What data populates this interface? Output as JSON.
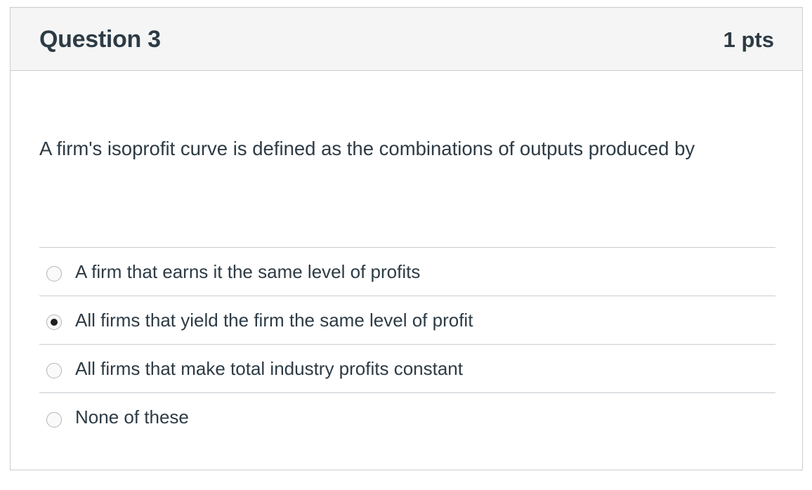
{
  "question": {
    "title": "Question 3",
    "points": "1 pts",
    "text": "A firm's isoprofit curve is defined as the combinations of outputs produced by"
  },
  "answers": [
    {
      "label": "A firm that earns it the same level of profits",
      "selected": false
    },
    {
      "label": "All firms that yield the firm the same level of profit",
      "selected": true
    },
    {
      "label": "All firms that make total industry profits constant",
      "selected": false
    },
    {
      "label": "None of these",
      "selected": false
    }
  ],
  "colors": {
    "header_bg": "#f5f5f5",
    "border": "#c7cdd1",
    "text": "#2d3b45"
  }
}
